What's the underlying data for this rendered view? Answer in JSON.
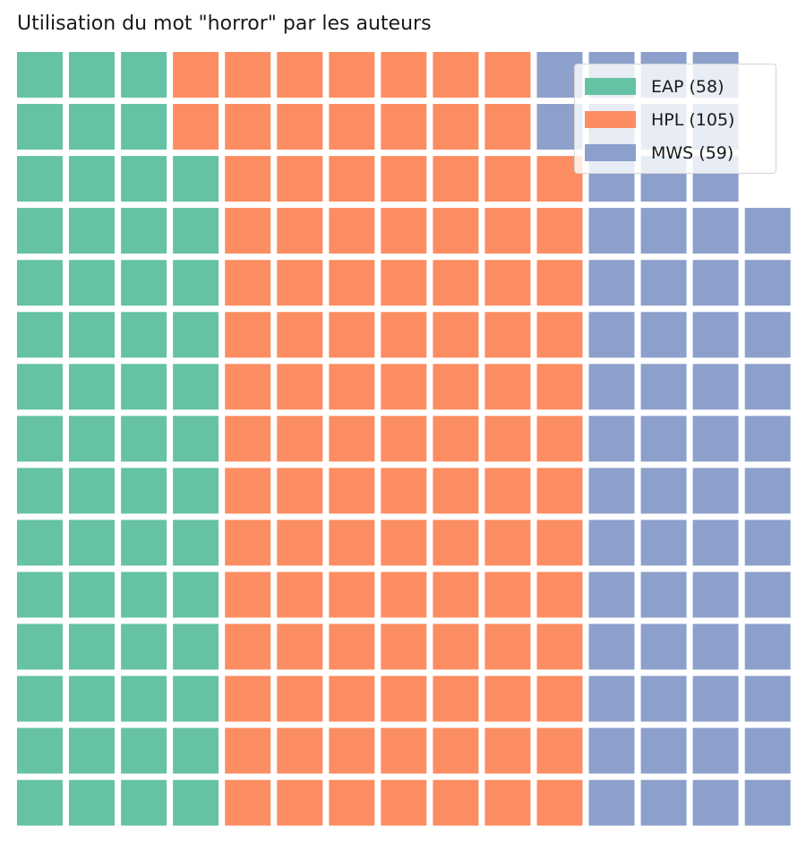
{
  "chart_data": {
    "type": "waffle",
    "title": "Utilisation du mot \"horror\" par les auteurs",
    "rows": 15,
    "columns": 15,
    "fill_order": "column-major, bottom-to-top, left-to-right",
    "series": [
      {
        "name": "EAP",
        "value": 58,
        "color": "#66c2a5",
        "legend_label": "EAP (58)"
      },
      {
        "name": "HPL",
        "value": 105,
        "color": "#fc8d62",
        "legend_label": "HPL (105)"
      },
      {
        "name": "MWS",
        "value": 59,
        "color": "#8da0cb",
        "legend_label": "MWS (59)"
      }
    ],
    "legend_position": "top-right"
  }
}
